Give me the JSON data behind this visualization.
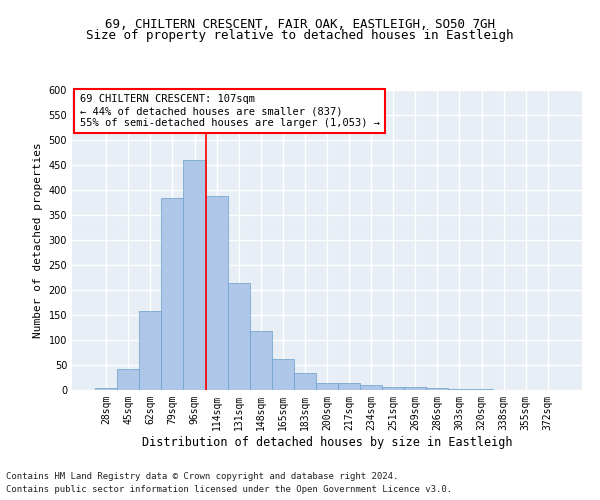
{
  "title1": "69, CHILTERN CRESCENT, FAIR OAK, EASTLEIGH, SO50 7GH",
  "title2": "Size of property relative to detached houses in Eastleigh",
  "xlabel": "Distribution of detached houses by size in Eastleigh",
  "ylabel": "Number of detached properties",
  "footnote1": "Contains HM Land Registry data © Crown copyright and database right 2024.",
  "footnote2": "Contains public sector information licensed under the Open Government Licence v3.0.",
  "categories": [
    "28sqm",
    "45sqm",
    "62sqm",
    "79sqm",
    "96sqm",
    "114sqm",
    "131sqm",
    "148sqm",
    "165sqm",
    "183sqm",
    "200sqm",
    "217sqm",
    "234sqm",
    "251sqm",
    "269sqm",
    "286sqm",
    "303sqm",
    "320sqm",
    "338sqm",
    "355sqm",
    "372sqm"
  ],
  "values": [
    5,
    42,
    158,
    385,
    460,
    388,
    215,
    118,
    62,
    35,
    15,
    15,
    10,
    7,
    7,
    5,
    2,
    2,
    0,
    0,
    0
  ],
  "bar_color": "#aec6e8",
  "bar_edge_color": "#6a9fcb",
  "vline_color": "red",
  "vline_index": 4.5,
  "annotation_line1": "69 CHILTERN CRESCENT: 107sqm",
  "annotation_line2": "← 44% of detached houses are smaller (837)",
  "annotation_line3": "55% of semi-detached houses are larger (1,053) →",
  "annotation_box_color": "white",
  "annotation_box_edge_color": "red",
  "ylim": [
    0,
    600
  ],
  "yticks": [
    0,
    50,
    100,
    150,
    200,
    250,
    300,
    350,
    400,
    450,
    500,
    550,
    600
  ],
  "background_color": "#e8eef5",
  "grid_color": "white",
  "title1_fontsize": 9,
  "title2_fontsize": 9,
  "xlabel_fontsize": 8.5,
  "ylabel_fontsize": 8,
  "tick_fontsize": 7,
  "annotation_fontsize": 7.5,
  "footnote_fontsize": 6.5
}
